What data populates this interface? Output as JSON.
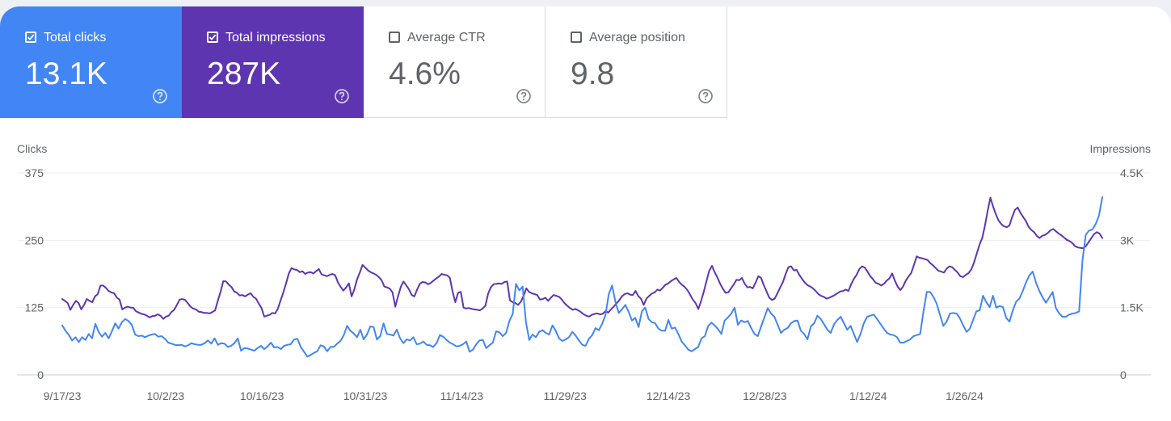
{
  "cards": [
    {
      "label": "Total clicks",
      "value": "13.1K",
      "checked": true,
      "color": "#4285f4",
      "icon": "help-circle-icon"
    },
    {
      "label": "Total impressions",
      "value": "287K",
      "checked": true,
      "color": "#5e35b1",
      "icon": "help-circle-icon"
    },
    {
      "label": "Average CTR",
      "value": "4.6%",
      "checked": false,
      "icon": "help-circle-icon"
    },
    {
      "label": "Average position",
      "value": "9.8",
      "checked": false,
      "icon": "help-circle-icon"
    }
  ],
  "chart_data": {
    "type": "line",
    "x_start": "2023-09-17",
    "x_end": "2024-02-15",
    "xticks": [
      {
        "date": "2023-09-17",
        "label": "9/17/23"
      },
      {
        "date": "2023-10-02",
        "label": "10/2/23"
      },
      {
        "date": "2023-10-16",
        "label": "10/16/23"
      },
      {
        "date": "2023-10-31",
        "label": "10/31/23"
      },
      {
        "date": "2023-11-14",
        "label": "11/14/23"
      },
      {
        "date": "2023-11-29",
        "label": "11/29/23"
      },
      {
        "date": "2023-12-14",
        "label": "12/14/23"
      },
      {
        "date": "2023-12-28",
        "label": "12/28/23"
      },
      {
        "date": "2024-01-12",
        "label": "1/12/24"
      },
      {
        "date": "2024-01-26",
        "label": "1/26/24"
      }
    ],
    "y_left": {
      "label": "Clicks",
      "min": 0,
      "max": 375,
      "ticks": [
        0,
        125,
        250,
        375
      ],
      "tick_labels": [
        "0",
        "125",
        "250",
        "375"
      ]
    },
    "y_right": {
      "label": "Impressions",
      "min": 0,
      "max": 4500,
      "ticks": [
        0,
        1500,
        3000,
        4500
      ],
      "tick_labels": [
        "0",
        "1.5K",
        "3K",
        "4.5K"
      ]
    },
    "grid": true,
    "legend": "none",
    "series": [
      {
        "name": "Total clicks",
        "axis": "left",
        "color": "#4285f4",
        "values": [
          92,
          82,
          74,
          64,
          70,
          61,
          70,
          65,
          76,
          68,
          95,
          80,
          71,
          78,
          68,
          81,
          96,
          86,
          98,
          104,
          100,
          93,
          75,
          72,
          73,
          70,
          73,
          75,
          76,
          71,
          72,
          67,
          60,
          58,
          56,
          55,
          56,
          53,
          55,
          59,
          57,
          56,
          56,
          59,
          64,
          58,
          68,
          56,
          59,
          58,
          52,
          54,
          59,
          68,
          45,
          50,
          49,
          47,
          45,
          50,
          54,
          48,
          53,
          60,
          51,
          52,
          48,
          54,
          56,
          57,
          66,
          67,
          52,
          43,
          34,
          37,
          41,
          44,
          55,
          53,
          44,
          52,
          52,
          58,
          63,
          74,
          91,
          82,
          77,
          70,
          84,
          66,
          75,
          90,
          89,
          66,
          72,
          96,
          76,
          75,
          73,
          84,
          68,
          59,
          66,
          64,
          70,
          57,
          58,
          62,
          56,
          55,
          52,
          59,
          74,
          71,
          65,
          60,
          57,
          53,
          54,
          57,
          62,
          43,
          47,
          57,
          64,
          65,
          50,
          55,
          60,
          81,
          79,
          72,
          78,
          100,
          113,
          169,
          157,
          164,
          98,
          65,
          75,
          70,
          80,
          83,
          78,
          75,
          92,
          82,
          68,
          63,
          66,
          70,
          80,
          73,
          64,
          56,
          54,
          67,
          74,
          87,
          83,
          95,
          111,
          150,
          166,
          136,
          115,
          122,
          130,
          117,
          101,
          106,
          89,
          118,
          125,
          104,
          98,
          96,
          86,
          82,
          82,
          102,
          86,
          88,
          76,
          62,
          55,
          47,
          44,
          48,
          52,
          68,
          72,
          91,
          97,
          92,
          85,
          76,
          101,
          107,
          114,
          125,
          93,
          101,
          98,
          100,
          87,
          76,
          72,
          90,
          107,
          124,
          114,
          108,
          93,
          78,
          84,
          87,
          96,
          100,
          101,
          82,
          76,
          66,
          90,
          96,
          110,
          104,
          94,
          84,
          78,
          94,
          102,
          108,
          96,
          84,
          91,
          76,
          61,
          76,
          96,
          108,
          110,
          112,
          104,
          95,
          86,
          78,
          75,
          74,
          70,
          60,
          60,
          63,
          66,
          72,
          74,
          76,
          118,
          154,
          154,
          145,
          132,
          111,
          91,
          99,
          114,
          115,
          114,
          105,
          92,
          80,
          86,
          102,
          118,
          120,
          147,
          135,
          126,
          147,
          125,
          128,
          126,
          106,
          99,
          120,
          136,
          142,
          156,
          172,
          185,
          192,
          171,
          156,
          144,
          134,
          144,
          154,
          124,
          114,
          108,
          108,
          112,
          114,
          115,
          118,
          212,
          260,
          268,
          270,
          280,
          296,
          330
        ]
      },
      {
        "name": "Total impressions",
        "axis": "right",
        "color": "#5e35b1",
        "values": [
          1690,
          1650,
          1600,
          1450,
          1560,
          1650,
          1600,
          1460,
          1560,
          1690,
          1650,
          1620,
          1750,
          1800,
          1990,
          1990,
          1940,
          1870,
          1840,
          1820,
          1720,
          1680,
          1460,
          1500,
          1520,
          1500,
          1500,
          1420,
          1390,
          1360,
          1350,
          1320,
          1280,
          1310,
          1320,
          1350,
          1320,
          1250,
          1300,
          1320,
          1400,
          1450,
          1560,
          1680,
          1690,
          1670,
          1600,
          1520,
          1480,
          1460,
          1410,
          1400,
          1380,
          1380,
          1370,
          1400,
          1440,
          1650,
          1850,
          2090,
          2080,
          2010,
          1960,
          1860,
          1830,
          1770,
          1780,
          1750,
          1790,
          1820,
          1740,
          1700,
          1590,
          1490,
          1300,
          1320,
          1340,
          1380,
          1370,
          1480,
          1660,
          1840,
          2040,
          2260,
          2380,
          2350,
          2340,
          2290,
          2310,
          2250,
          2280,
          2290,
          2260,
          2310,
          2360,
          2240,
          2220,
          2200,
          2230,
          2250,
          2220,
          2060,
          1960,
          1880,
          1950,
          2040,
          1750,
          1900,
          2130,
          2280,
          2450,
          2390,
          2330,
          2290,
          2260,
          2230,
          2180,
          2110,
          1970,
          1950,
          1920,
          1840,
          1520,
          1750,
          1960,
          2080,
          2000,
          1910,
          1780,
          1750,
          1900,
          2030,
          2070,
          2060,
          2020,
          2050,
          2100,
          2150,
          2190,
          2250,
          2230,
          2220,
          2160,
          1860,
          1620,
          1830,
          1850,
          1500,
          1480,
          1490,
          1470,
          1460,
          1450,
          1440,
          1480,
          1540,
          1810,
          1950,
          2020,
          2030,
          2040,
          2030,
          2070,
          2080,
          1660,
          1620,
          1600,
          1560,
          1630,
          1760,
          1930,
          1850,
          1820,
          1800,
          1780,
          1680,
          1690,
          1720,
          1650,
          1720,
          1780,
          1760,
          1740,
          1680,
          1600,
          1540,
          1490,
          1450,
          1470,
          1440,
          1400,
          1350,
          1320,
          1300,
          1340,
          1360,
          1370,
          1350,
          1360,
          1420,
          1390,
          1460,
          1520,
          1590,
          1660,
          1750,
          1800,
          1820,
          1790,
          1780,
          1870,
          1760,
          1700,
          1560,
          1700,
          1760,
          1810,
          1840,
          1900,
          1880,
          1940,
          2010,
          2040,
          2090,
          2130,
          2160,
          2070,
          2010,
          1960,
          1890,
          1790,
          1680,
          1600,
          1470,
          1640,
          1850,
          2090,
          2320,
          2430,
          2290,
          2170,
          2030,
          1920,
          1830,
          1840,
          1930,
          2020,
          2120,
          2110,
          2160,
          2030,
          1950,
          1960,
          1930,
          2060,
          2200,
          2160,
          2000,
          1860,
          1720,
          1670,
          1700,
          1820,
          1950,
          2070,
          2250,
          2400,
          2420,
          2330,
          2340,
          2230,
          2140,
          2060,
          2000,
          1970,
          1930,
          1870,
          1800,
          1760,
          1740,
          1700,
          1720,
          1750,
          1780,
          1820,
          1860,
          1870,
          1900,
          1870,
          2020,
          2140,
          2230,
          2360,
          2420,
          2390,
          2300,
          2200,
          2130,
          2050,
          2030,
          1990,
          2030,
          2100,
          2150,
          2260,
          2100,
          1970,
          1890,
          1970,
          2100,
          2190,
          2270,
          2450,
          2640,
          2610,
          2600,
          2580,
          2560,
          2490,
          2440,
          2380,
          2320,
          2300,
          2280,
          2370,
          2420,
          2400,
          2340,
          2280,
          2200,
          2180,
          2230,
          2270,
          2350,
          2500,
          2700,
          2900,
          3050,
          3320,
          3650,
          3950,
          3750,
          3580,
          3440,
          3360,
          3310,
          3290,
          3330,
          3520,
          3680,
          3730,
          3610,
          3520,
          3430,
          3300,
          3230,
          3180,
          3100,
          3050,
          3100,
          3120,
          3160,
          3220,
          3250,
          3200,
          3150,
          3110,
          3060,
          3010,
          2980,
          2940,
          2870,
          2840,
          2830,
          2820,
          2870,
          2960,
          3050,
          3140,
          3180,
          3150,
          3050
        ]
      }
    ]
  }
}
